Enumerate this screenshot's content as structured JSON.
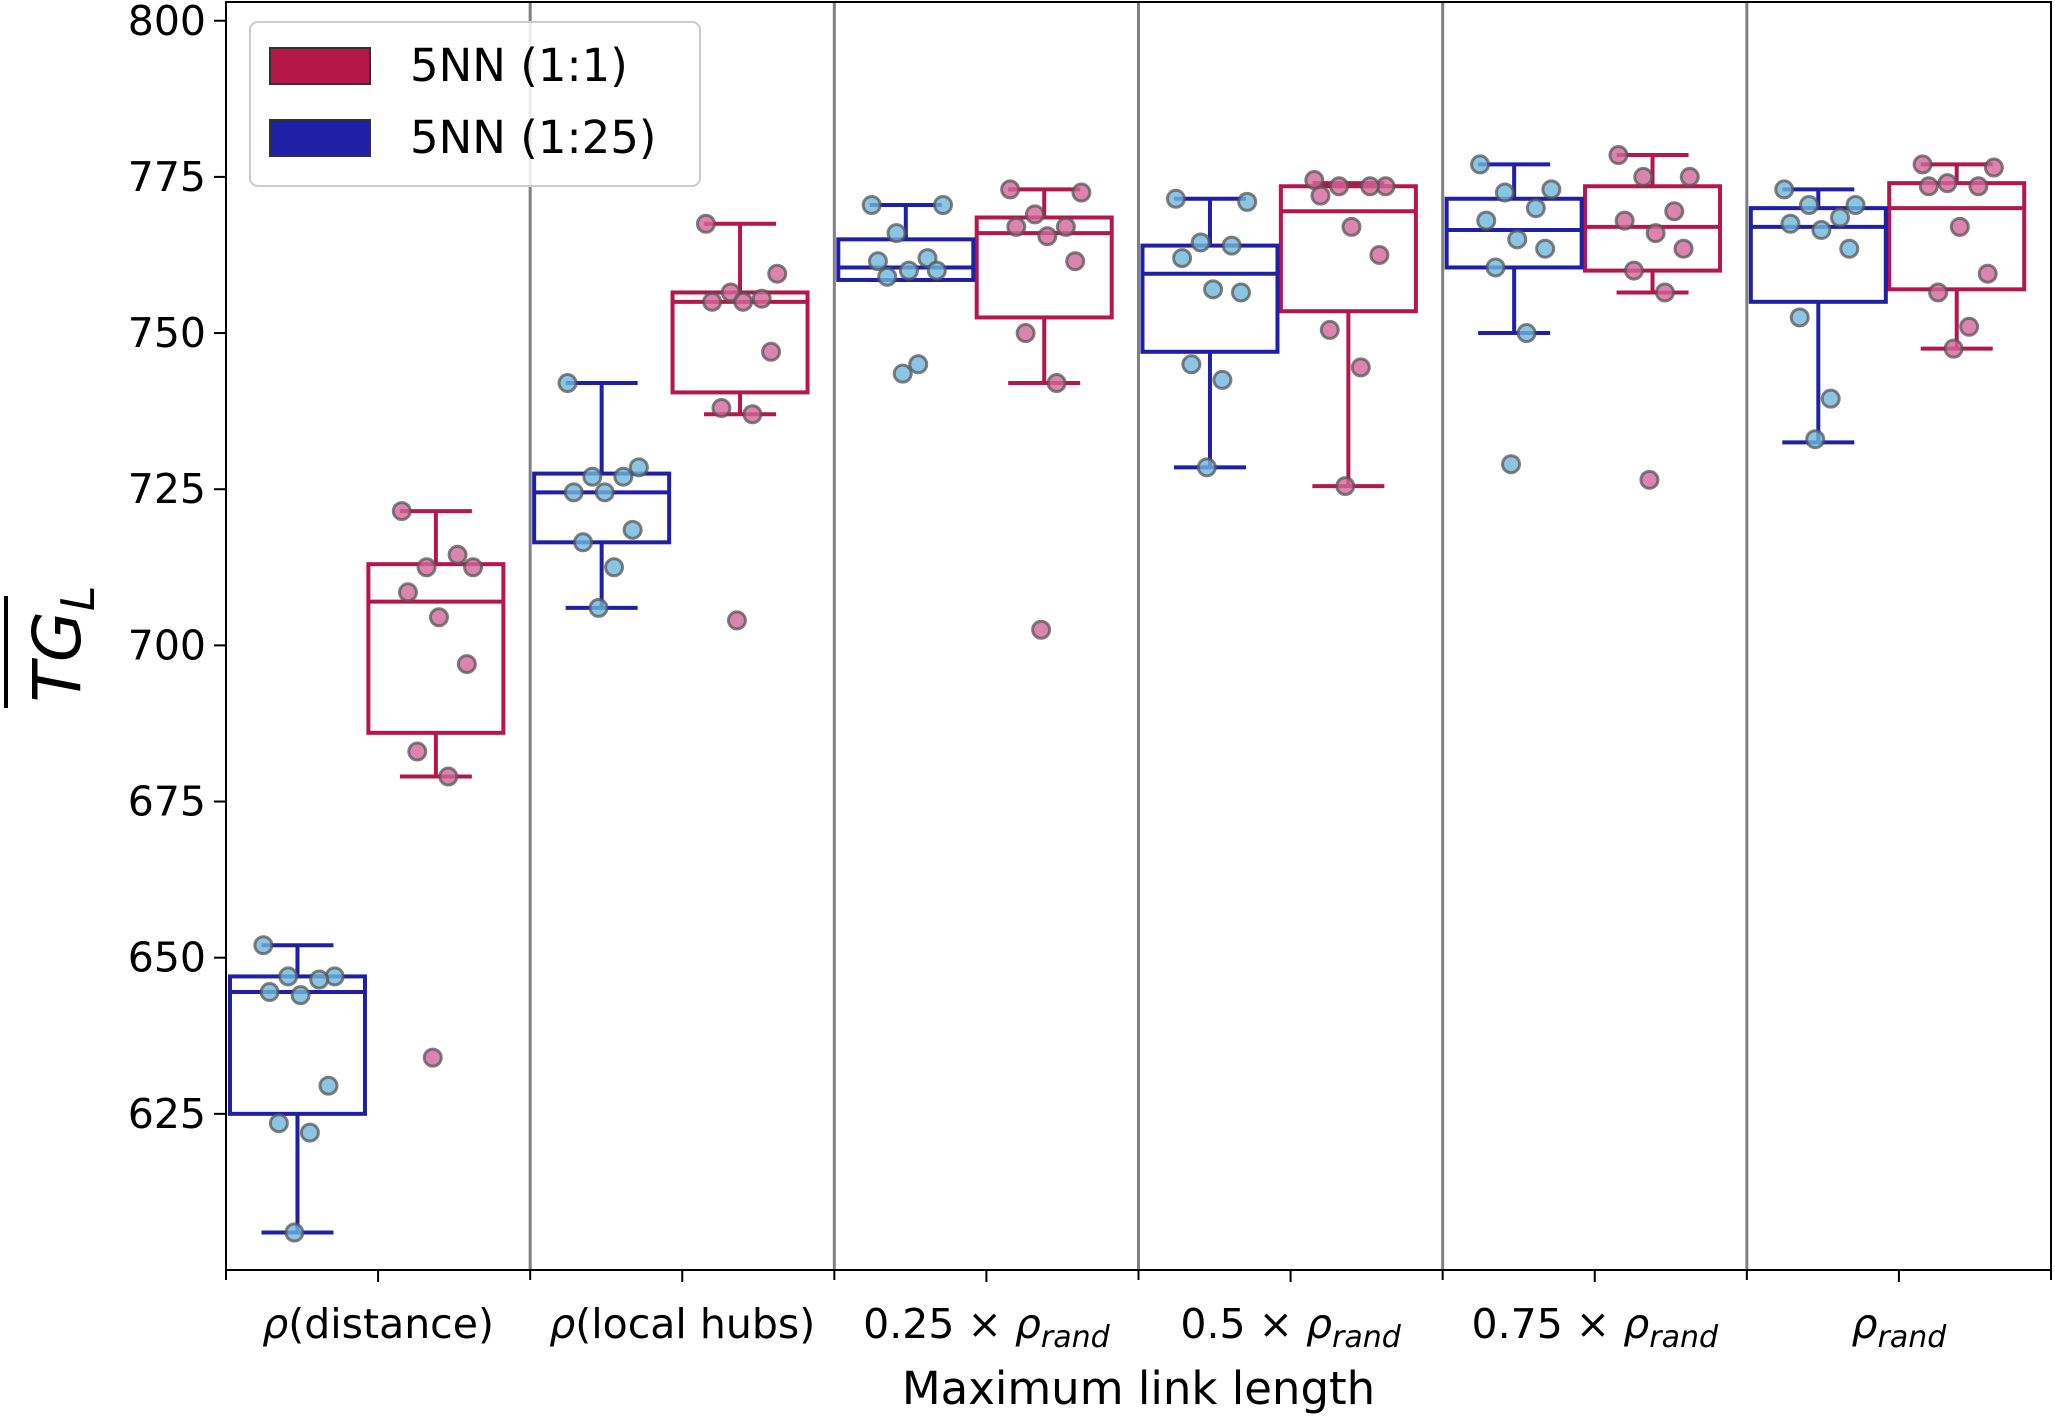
{
  "chart_data": {
    "type": "box",
    "xlabel": "Maximum link length",
    "ylabel_main": "TG",
    "ylabel_sub": "L",
    "ylim": [
      600,
      803
    ],
    "yticks": [
      625,
      650,
      675,
      700,
      725,
      750,
      775,
      800
    ],
    "grid": false,
    "legend_position": "top-left",
    "colors": {
      "1to1": "#b5174b",
      "1to25": "#1f1fa8",
      "points_1to25": "#6fb7da",
      "points_1to1": "#d2679a",
      "separator": "#808080"
    },
    "categories": [
      {
        "main": "ρ",
        "sub": "",
        "suffix": "(distance)"
      },
      {
        "main": "ρ",
        "sub": "",
        "suffix": "(local hubs)"
      },
      {
        "main": "0.25 × ρ",
        "sub": "rand",
        "suffix": ""
      },
      {
        "main": "0.5 × ρ",
        "sub": "rand",
        "suffix": ""
      },
      {
        "main": "0.75 × ρ",
        "sub": "rand",
        "suffix": ""
      },
      {
        "main": "ρ",
        "sub": "rand",
        "suffix": ""
      }
    ],
    "series": [
      {
        "name": "5NN (1:1)",
        "key": "1to1",
        "boxes": [
          {
            "whislo": 679,
            "q1": 686,
            "med": 707,
            "q3": 713,
            "whishi": 721.5,
            "points": [
              721.5,
              712.5,
              712.5,
              714.5,
              708.5,
              704.5,
              697,
              683,
              679,
              634
            ]
          },
          {
            "whislo": 737,
            "q1": 740.5,
            "med": 755,
            "q3": 756.5,
            "whishi": 767.5,
            "points": [
              767.5,
              759.5,
              756.5,
              755.5,
              755,
              755,
              747,
              738,
              737,
              704
            ]
          },
          {
            "whislo": 742,
            "q1": 752.5,
            "med": 766,
            "q3": 768.5,
            "whishi": 773,
            "points": [
              773,
              772.5,
              769,
              767,
              767,
              765.5,
              761.5,
              750,
              742,
              702.5
            ]
          },
          {
            "whislo": 725.5,
            "q1": 753.5,
            "med": 769.5,
            "q3": 773.5,
            "whishi": 774,
            "points": [
              774.5,
              773.5,
              773.5,
              773.5,
              772,
              767,
              762.5,
              750.5,
              744.5,
              725.5
            ]
          },
          {
            "whislo": 756.5,
            "q1": 760,
            "med": 767,
            "q3": 773.5,
            "whishi": 778.5,
            "points": [
              778.5,
              775,
              775,
              769.5,
              768,
              766,
              763.5,
              760,
              756.5,
              726.5
            ]
          },
          {
            "whislo": 747.5,
            "q1": 757,
            "med": 770,
            "q3": 774,
            "whishi": 777,
            "points": [
              777,
              776.5,
              774,
              773.5,
              773.5,
              767,
              759.5,
              756.5,
              751,
              747.5
            ]
          }
        ]
      },
      {
        "name": "5NN (1:25)",
        "key": "1to25",
        "boxes": [
          {
            "whislo": 606,
            "q1": 625,
            "med": 644.5,
            "q3": 647,
            "whishi": 652,
            "points": [
              652,
              647,
              647,
              646.5,
              644.5,
              644,
              629.5,
              623.5,
              622,
              606
            ]
          },
          {
            "whislo": 706,
            "q1": 716.5,
            "med": 724.5,
            "q3": 727.5,
            "whishi": 742,
            "points": [
              742,
              728.5,
              727,
              727,
              724.5,
              724.5,
              718.5,
              716.5,
              712.5,
              706
            ]
          },
          {
            "whislo": 758.5,
            "q1": 758.5,
            "med": 760.5,
            "q3": 765,
            "whishi": 770.5,
            "points": [
              770.5,
              770.5,
              766,
              762,
              761.5,
              760,
              760,
              759,
              745,
              743.5
            ]
          },
          {
            "whislo": 728.5,
            "q1": 747,
            "med": 759.5,
            "q3": 764,
            "whishi": 771.5,
            "points": [
              771.5,
              771,
              764.5,
              764,
              762,
              757,
              756.5,
              745,
              742.5,
              728.5
            ]
          },
          {
            "whislo": 750,
            "q1": 760.5,
            "med": 766.5,
            "q3": 771.5,
            "whishi": 777,
            "points": [
              777,
              773,
              772.5,
              770,
              768,
              765,
              763.5,
              760.5,
              750,
              729
            ]
          },
          {
            "whislo": 732.5,
            "q1": 755,
            "med": 767,
            "q3": 770,
            "whishi": 773,
            "points": [
              773,
              770.5,
              770.5,
              768.5,
              767.5,
              766.5,
              763.5,
              752.5,
              739.5,
              733
            ]
          }
        ]
      }
    ]
  }
}
